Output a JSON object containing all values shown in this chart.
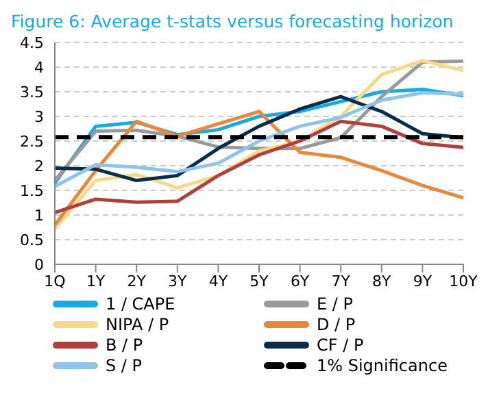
{
  "chart_data": {
    "type": "line",
    "title": "Figure 6: Average t-stats versus forecasting horizon",
    "categories": [
      "1Q",
      "1Y",
      "2Y",
      "3Y",
      "4Y",
      "5Y",
      "6Y",
      "7Y",
      "8Y",
      "9Y",
      "10Y"
    ],
    "series": [
      {
        "name": "1 / CAPE",
        "color": "#1ba9e1",
        "values": [
          1.65,
          2.8,
          2.88,
          2.63,
          2.73,
          3.0,
          3.1,
          3.3,
          3.5,
          3.55,
          3.42
        ]
      },
      {
        "name": "E / P",
        "color": "#9a9a9a",
        "values": [
          1.7,
          2.7,
          2.72,
          2.6,
          2.38,
          2.35,
          2.35,
          2.57,
          3.4,
          4.1,
          4.12
        ]
      },
      {
        "name": "NIPA / P",
        "color": "#f8d98a",
        "values": [
          0.72,
          1.7,
          1.82,
          1.55,
          1.8,
          2.3,
          2.5,
          3.0,
          3.85,
          4.13,
          3.93
        ]
      },
      {
        "name": "D / P",
        "color": "#e8883a",
        "values": [
          0.8,
          1.9,
          2.9,
          2.6,
          2.85,
          3.1,
          2.27,
          2.17,
          1.9,
          1.6,
          1.35
        ]
      },
      {
        "name": "B / P",
        "color": "#b04040",
        "values": [
          1.05,
          1.32,
          1.26,
          1.28,
          1.8,
          2.22,
          2.5,
          2.9,
          2.8,
          2.45,
          2.37
        ]
      },
      {
        "name": "CF / P",
        "color": "#0a2d4a",
        "values": [
          1.95,
          1.93,
          1.7,
          1.8,
          2.35,
          2.8,
          3.15,
          3.4,
          3.1,
          2.65,
          2.57
        ]
      },
      {
        "name": "S / P",
        "color": "#8fc3ea",
        "values": [
          1.58,
          2.02,
          1.97,
          1.88,
          2.05,
          2.5,
          2.8,
          2.98,
          3.33,
          3.48,
          3.45
        ]
      }
    ],
    "ref_lines": [
      {
        "axis": "y",
        "value": 2.58,
        "label": "1% Significance",
        "color": "#000000",
        "line_style": "dashed"
      }
    ],
    "ylim": [
      0,
      4.5
    ],
    "yticks": [
      0,
      0.5,
      1,
      1.5,
      2,
      2.5,
      3,
      3.5,
      4,
      4.5
    ],
    "grid": "y",
    "legend": "bottom",
    "marker": "none",
    "line_style": "solid"
  }
}
